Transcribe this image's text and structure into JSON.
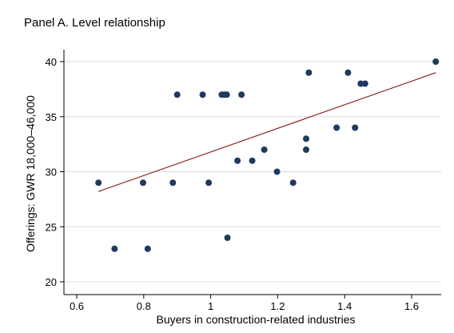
{
  "chart_data": {
    "type": "scatter",
    "title": "Panel A. Level relationship",
    "xlabel": "Buyers in construction-related industries",
    "ylabel": "Offerings: GWR 18,000–46,000",
    "xlim": [
      0.6,
      1.7
    ],
    "ylim": [
      20,
      40
    ],
    "x_ticks": [
      0.6,
      0.8,
      1,
      1.2,
      1.4,
      1.6
    ],
    "x_tick_labels": [
      "0.6",
      "0.8",
      "1",
      "1.2",
      "1.4",
      "1.6"
    ],
    "y_ticks": [
      20,
      25,
      30,
      35,
      40
    ],
    "y_tick_labels": [
      "20",
      "25",
      "30",
      "35",
      "40"
    ],
    "grid": true,
    "legend": "none",
    "colors": {
      "points": "#1f3a5f",
      "fit_line": "#8b2a2a",
      "grid": "#dcdcdc"
    },
    "points": [
      {
        "x": 0.665,
        "y": 29
      },
      {
        "x": 0.713,
        "y": 23
      },
      {
        "x": 0.798,
        "y": 29
      },
      {
        "x": 0.812,
        "y": 23
      },
      {
        "x": 0.887,
        "y": 29
      },
      {
        "x": 0.9,
        "y": 37
      },
      {
        "x": 0.976,
        "y": 37
      },
      {
        "x": 0.994,
        "y": 29
      },
      {
        "x": 1.033,
        "y": 37
      },
      {
        "x": 1.041,
        "y": 37
      },
      {
        "x": 1.048,
        "y": 37
      },
      {
        "x": 1.05,
        "y": 24
      },
      {
        "x": 1.08,
        "y": 31
      },
      {
        "x": 1.092,
        "y": 37
      },
      {
        "x": 1.124,
        "y": 31
      },
      {
        "x": 1.16,
        "y": 32
      },
      {
        "x": 1.198,
        "y": 30
      },
      {
        "x": 1.246,
        "y": 29
      },
      {
        "x": 1.285,
        "y": 33
      },
      {
        "x": 1.285,
        "y": 32
      },
      {
        "x": 1.293,
        "y": 39
      },
      {
        "x": 1.376,
        "y": 34
      },
      {
        "x": 1.41,
        "y": 39
      },
      {
        "x": 1.431,
        "y": 34
      },
      {
        "x": 1.448,
        "y": 38
      },
      {
        "x": 1.461,
        "y": 38
      },
      {
        "x": 1.672,
        "y": 40
      }
    ],
    "fit_line": [
      {
        "x": 0.665,
        "y": 28.2
      },
      {
        "x": 1.672,
        "y": 39.0
      }
    ]
  }
}
